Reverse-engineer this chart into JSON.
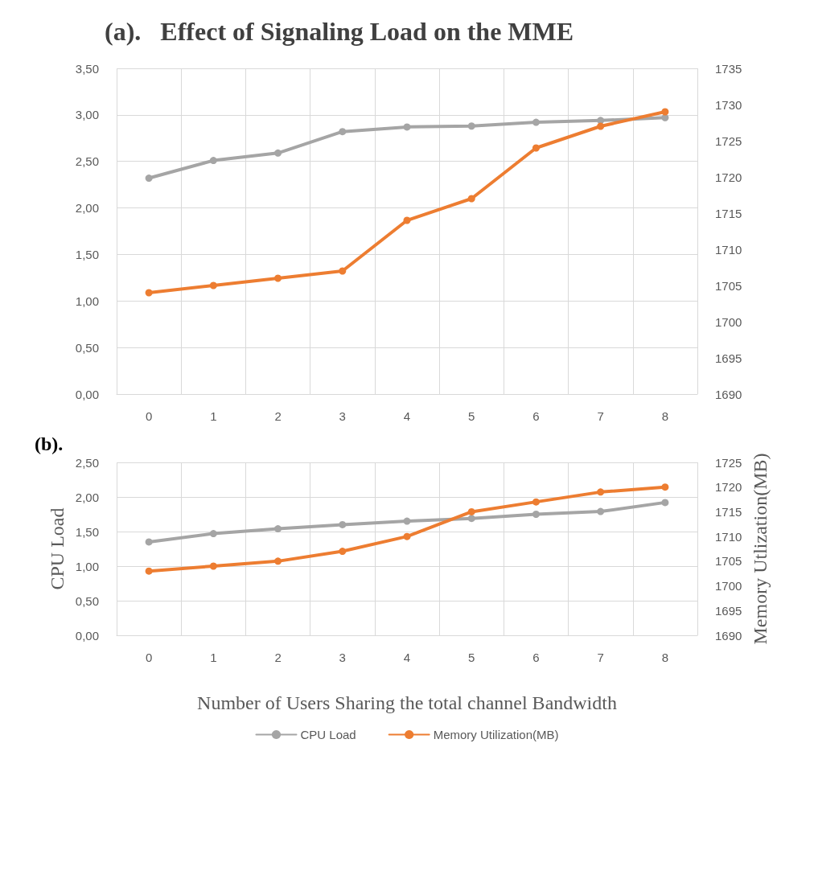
{
  "chart_data": [
    {
      "type": "line",
      "title": "(a).   Effect of Signaling Load on the MME",
      "categories": [
        "0",
        "1",
        "2",
        "3",
        "4",
        "5",
        "6",
        "7",
        "8"
      ],
      "series": [
        {
          "color": "#a5a5a5",
          "values": [
            2.32,
            2.51,
            2.59,
            2.82,
            2.87,
            2.88,
            2.92,
            2.94,
            2.97
          ]
        },
        {
          "color": "#ed7d31",
          "axis": "y2",
          "values": [
            1704,
            1705,
            1706,
            1707,
            1714,
            1717,
            1724,
            1727,
            1729
          ]
        }
      ],
      "ylim": [
        0,
        3.5
      ],
      "yticks": [
        {
          "value": 0,
          "label": "0,00"
        },
        {
          "value": 0.5,
          "label": "0,50"
        },
        {
          "value": 1,
          "label": "1,00"
        },
        {
          "value": 1.5,
          "label": "1,50"
        },
        {
          "value": 2,
          "label": "2,00"
        },
        {
          "value": 2.5,
          "label": "2,50"
        },
        {
          "value": 3,
          "label": "3,00"
        },
        {
          "value": 3.5,
          "label": "3,50"
        }
      ],
      "y2lim": [
        1690,
        1735
      ],
      "y2ticks": [
        1690,
        1695,
        1700,
        1705,
        1710,
        1715,
        1720,
        1725,
        1730,
        1735
      ],
      "grid": true,
      "marker": "circle",
      "legend": false
    },
    {
      "type": "line",
      "title": "(b).",
      "xlabel": "Number of Users Sharing the total channel Bandwidth",
      "ylabel": "CPU Load",
      "y2label": "Memory Utlization(MB)",
      "categories": [
        "0",
        "1",
        "2",
        "3",
        "4",
        "5",
        "6",
        "7",
        "8"
      ],
      "series": [
        {
          "name": "CPU Load",
          "color": "#a5a5a5",
          "values": [
            1.35,
            1.47,
            1.54,
            1.6,
            1.65,
            1.69,
            1.75,
            1.79,
            1.92
          ]
        },
        {
          "name": "Memory Utilization(MB)",
          "color": "#ed7d31",
          "axis": "y2",
          "values": [
            1703,
            1704,
            1705,
            1707,
            1710,
            1715,
            1717,
            1719,
            1720
          ]
        }
      ],
      "ylim": [
        0,
        2.5
      ],
      "yticks": [
        {
          "value": 0,
          "label": "0,00"
        },
        {
          "value": 0.5,
          "label": "0,50"
        },
        {
          "value": 1,
          "label": "1,00"
        },
        {
          "value": 1.5,
          "label": "1,50"
        },
        {
          "value": 2,
          "label": "2,00"
        },
        {
          "value": 2.5,
          "label": "2,50"
        }
      ],
      "y2lim": [
        1690,
        1725
      ],
      "y2ticks": [
        1690,
        1695,
        1700,
        1705,
        1710,
        1715,
        1720,
        1725
      ],
      "grid": true,
      "marker": "circle",
      "legend": "bottom"
    }
  ]
}
